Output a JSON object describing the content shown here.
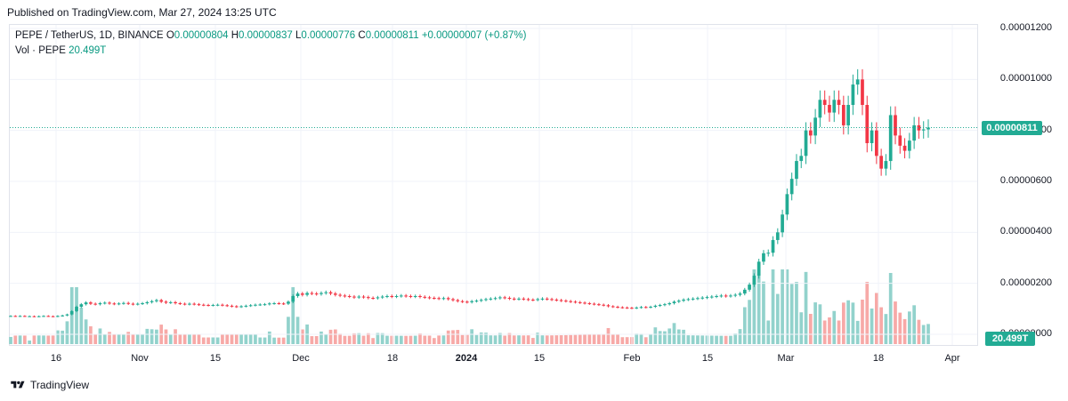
{
  "header": {
    "published": "Published on TradingView.com, Mar 27, 2024 13:25 UTC"
  },
  "legend": {
    "symbol": "PEPE / TetherUS, 1D, BINANCE",
    "open_label": "O",
    "open": "0.00000804",
    "high_label": "H",
    "high": "0.00000837",
    "low_label": "L",
    "low": "0.00000776",
    "close_label": "C",
    "close": "0.00000811",
    "change": "+0.00000007 (+0.87%)",
    "vol_label": "Vol · PEPE",
    "vol_value": "20.499T"
  },
  "price_tag": "0.00000811",
  "volume_tag": "20.499T",
  "footer": {
    "brand": "TradingView"
  },
  "colors": {
    "up": "#22ab94",
    "down": "#f23645",
    "up_vol": "#92d2cc",
    "down_vol": "#f7a9a7",
    "grid": "#f0f3fa",
    "last_line": "#22ab94"
  },
  "chart_data": {
    "type": "candlestick",
    "symbol": "PEPE/USDT",
    "interval": "1D",
    "y_ticks": [
      "0.00001200",
      "0.00001000",
      "0.00000800",
      "0.00000600",
      "0.00000400",
      "0.00000200",
      "0.00000000"
    ],
    "ylim": [
      0,
      1.21e-05
    ],
    "x_ticks": [
      "16",
      "Nov",
      "15",
      "Dec",
      "18",
      "2024",
      "15",
      "Feb",
      "15",
      "Mar",
      "18",
      "Apr"
    ],
    "x_tick_dates": [
      "2023-10-16",
      "2023-11-01",
      "2023-11-15",
      "2023-12-01",
      "2023-12-18",
      "2024-01-01",
      "2024-01-15",
      "2024-02-01",
      "2024-02-15",
      "2024-03-01",
      "2024-03-18",
      "2024-04-01"
    ],
    "last_price": 8.11e-06,
    "grid": true,
    "closes_approx": [
      7.2e-07,
      7.1e-07,
      7.2e-07,
      7.1e-07,
      7.1e-07,
      7e-07,
      7.1e-07,
      7.2e-07,
      7.1e-07,
      7e-07,
      7.2e-07,
      7.4e-07,
      7.8e-07,
      9.1e-07,
      1.08e-06,
      1.18e-06,
      1.25e-06,
      1.2e-06,
      1.18e-06,
      1.22e-06,
      1.24e-06,
      1.21e-06,
      1.19e-06,
      1.21e-06,
      1.23e-06,
      1.2e-06,
      1.18e-06,
      1.2e-06,
      1.22e-06,
      1.26e-06,
      1.3e-06,
      1.34e-06,
      1.28e-06,
      1.24e-06,
      1.26e-06,
      1.22e-06,
      1.2e-06,
      1.18e-06,
      1.2e-06,
      1.18e-06,
      1.16e-06,
      1.15e-06,
      1.14e-06,
      1.15e-06,
      1.16e-06,
      1.14e-06,
      1.12e-06,
      1.1e-06,
      1.08e-06,
      1.1e-06,
      1.12e-06,
      1.14e-06,
      1.16e-06,
      1.17e-06,
      1.18e-06,
      1.21e-06,
      1.22e-06,
      1.21e-06,
      1.2e-06,
      1.28e-06,
      1.5e-06,
      1.6e-06,
      1.55e-06,
      1.62e-06,
      1.6e-06,
      1.58e-06,
      1.62e-06,
      1.65e-06,
      1.6e-06,
      1.55e-06,
      1.52e-06,
      1.5e-06,
      1.48e-06,
      1.45e-06,
      1.48e-06,
      1.46e-06,
      1.43e-06,
      1.42e-06,
      1.45e-06,
      1.48e-06,
      1.5e-06,
      1.48e-06,
      1.5e-06,
      1.52e-06,
      1.5e-06,
      1.48e-06,
      1.5e-06,
      1.47e-06,
      1.45e-06,
      1.43e-06,
      1.42e-06,
      1.4e-06,
      1.42e-06,
      1.38e-06,
      1.34e-06,
      1.3e-06,
      1.28e-06,
      1.26e-06,
      1.3e-06,
      1.32e-06,
      1.35e-06,
      1.38e-06,
      1.4e-06,
      1.42e-06,
      1.45e-06,
      1.43e-06,
      1.4e-06,
      1.38e-06,
      1.4e-06,
      1.38e-06,
      1.36e-06,
      1.35e-06,
      1.38e-06,
      1.4e-06,
      1.38e-06,
      1.36e-06,
      1.34e-06,
      1.32e-06,
      1.3e-06,
      1.28e-06,
      1.26e-06,
      1.24e-06,
      1.22e-06,
      1.2e-06,
      1.18e-06,
      1.16e-06,
      1.14e-06,
      1.1e-06,
      1.08e-06,
      1.06e-06,
      1.05e-06,
      1.04e-06,
      1.03e-06,
      1.05e-06,
      1.07e-06,
      1.06e-06,
      1.08e-06,
      1.12e-06,
      1.15e-06,
      1.18e-06,
      1.22e-06,
      1.28e-06,
      1.32e-06,
      1.36e-06,
      1.38e-06,
      1.4e-06,
      1.42e-06,
      1.44e-06,
      1.46e-06,
      1.48e-06,
      1.5e-06,
      1.52e-06,
      1.5e-06,
      1.52e-06,
      1.55e-06,
      1.6e-06,
      1.75e-06,
      1.95e-06,
      2.3e-06,
      2.85e-06,
      3.18e-06,
      3.2e-06,
      3.7e-06,
      4e-06,
      4.7e-06,
      5.5e-06,
      6.1e-06,
      6.8e-06,
      7e-06,
      8e-06,
      7.8e-06,
      8.5e-06,
      9.2e-06,
      9e-06,
      8.7e-06,
      9.2e-06,
      9e-06,
      8.2e-06,
      9e-06,
      9.8e-06,
      1e-05,
      9e-06,
      7.5e-06,
      8e-06,
      7e-06,
      6.5e-06,
      6.8e-06,
      8.6e-06,
      7.8e-06,
      7.4e-06,
      7.2e-06,
      7.6e-06,
      8.2e-06,
      8e-06,
      8.04e-06,
      8.11e-06
    ],
    "volume_series_note": ""
  }
}
